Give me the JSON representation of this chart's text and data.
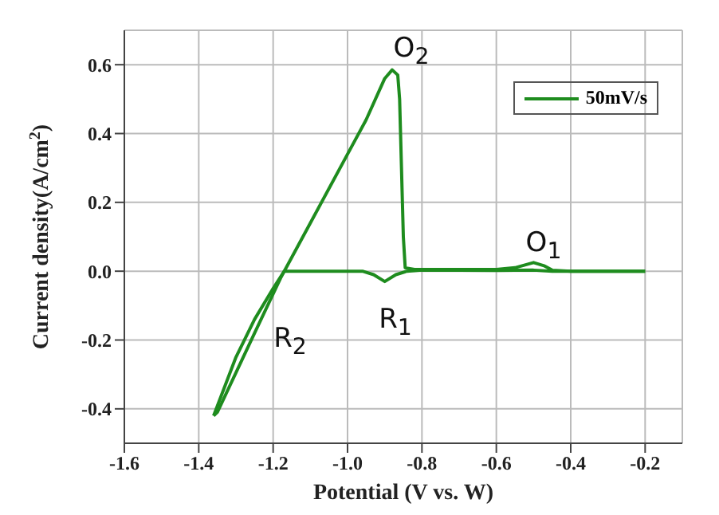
{
  "chart_data": {
    "type": "line",
    "xlabel": "Potential (V vs. W)",
    "ylabel": "Current density(A/cm$^{2}$)",
    "series": [
      {
        "name": "50mV/s",
        "color": "#1e8c1e",
        "x": [
          -0.2,
          -0.45,
          -0.5,
          -0.6,
          -0.8,
          -0.84,
          -0.87,
          -0.9,
          -0.93,
          -0.96,
          -1.1,
          -1.17,
          -1.2,
          -1.25,
          -1.3,
          -1.36
        ],
        "values": [
          0,
          0,
          0.003,
          0.002,
          0.003,
          0,
          -0.01,
          -0.03,
          -0.01,
          0,
          0,
          0,
          -0.05,
          -0.14,
          -0.25,
          -0.42
        ]
      },
      {
        "color": "#1e8c1e",
        "x": [
          -1.36,
          -1.35,
          -1.25,
          -1.18,
          -1.1,
          -1.0,
          -0.95,
          -0.9,
          -0.88,
          -0.865,
          -0.86,
          -0.855,
          -0.85,
          -0.845,
          -0.82,
          -0.6,
          -0.55,
          -0.5,
          -0.47,
          -0.45,
          -0.4,
          -0.2
        ],
        "values": [
          -0.42,
          -0.41,
          -0.18,
          -0.02,
          0.14,
          0.34,
          0.44,
          0.56,
          0.585,
          0.57,
          0.5,
          0.3,
          0.1,
          0.01,
          0.005,
          0.005,
          0.01,
          0.025,
          0.015,
          0.003,
          0,
          0
        ]
      }
    ],
    "xlim": [
      -1.6,
      -0.1
    ],
    "xticks": [
      -1.6,
      -1.4,
      -1.2,
      {
        "value": -1.0,
        "label": "-1.0"
      },
      -0.8,
      -0.6,
      -0.4,
      -0.2
    ],
    "ylim": [
      -0.5,
      0.7
    ],
    "yticks": [
      -0.4,
      -0.2,
      {
        "value": 0,
        "label": "0.0"
      },
      0.2,
      0.4,
      0.6
    ],
    "grid": true,
    "legend": "top right",
    "marker": "none",
    "line_style": "solid",
    "annotations": [
      "O$_{2}$",
      "O$_{1}$",
      "R$_{1}$",
      "R$_{2}$"
    ]
  }
}
